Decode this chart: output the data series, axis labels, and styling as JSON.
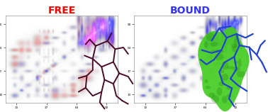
{
  "title_free": "FREE",
  "title_bound": "BOUND",
  "title_free_color": "#FF0000",
  "title_bound_color": "#3333FF",
  "title_fontsize": 10,
  "title_fontweight": "bold",
  "fig_width": 3.78,
  "fig_height": 1.58,
  "dpi": 100,
  "blue_peak": "#2222BB",
  "light_blue_peak": "#8899CC",
  "red_peak": "#CC2222",
  "light_red_peak": "#EE8888",
  "mol_free_color": "#4A0A28",
  "green_blob": "#44CC22",
  "green_dark": "#228811",
  "blue_mol": "#2244CC"
}
